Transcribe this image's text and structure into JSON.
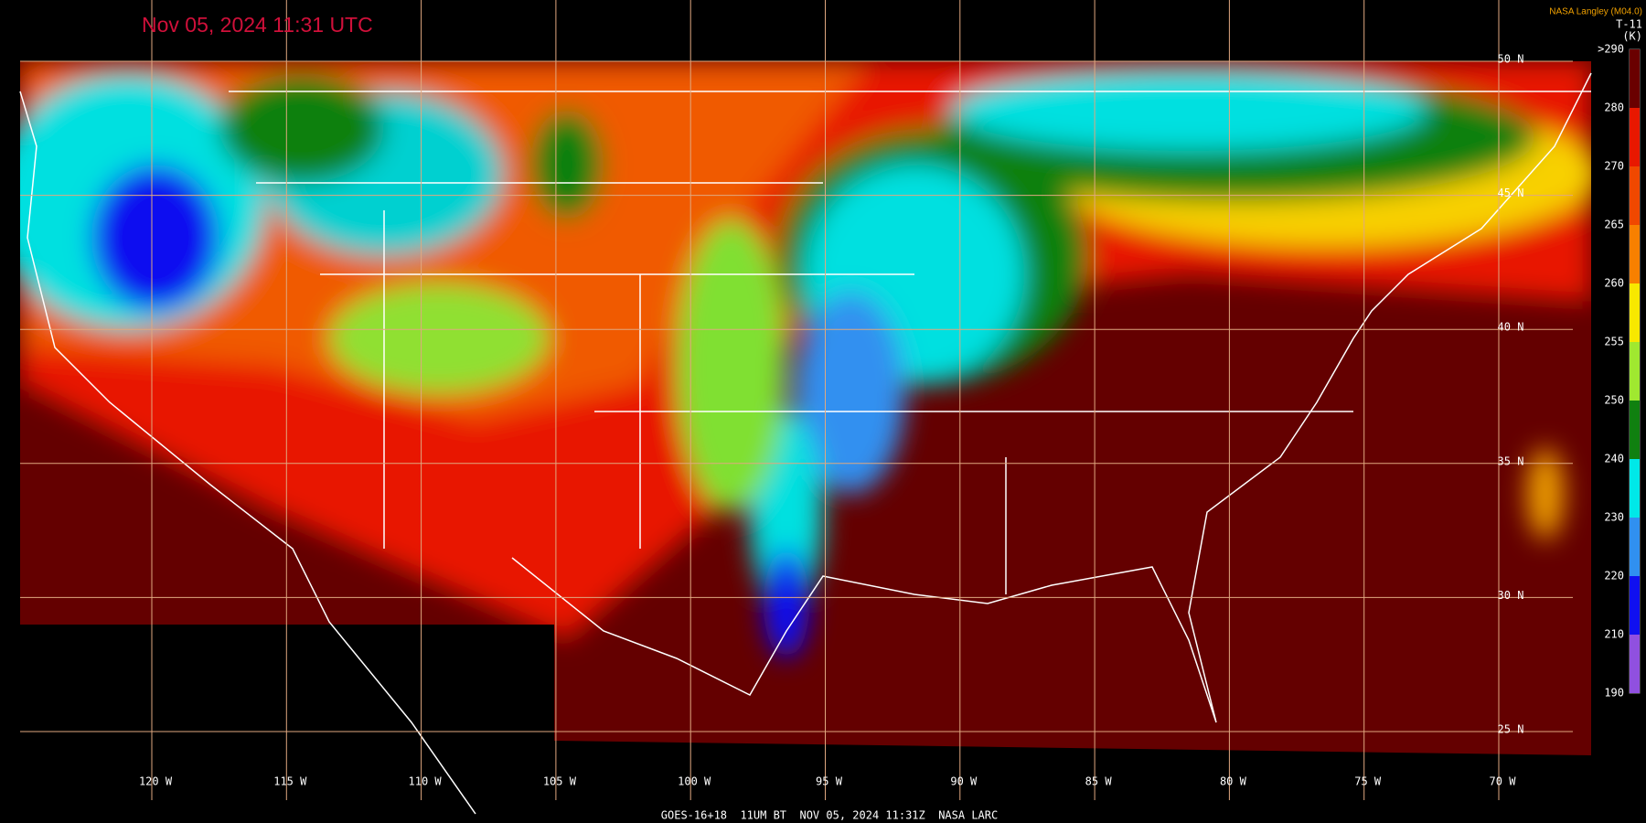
{
  "header": {
    "title": "Nov 05, 2024 11:31 UTC",
    "credit": "NASA Langley (M04.0)"
  },
  "colorbar": {
    "title": "T-11",
    "unit": "(K)",
    "labels": [
      ">290",
      "280",
      "270",
      "265",
      "260",
      "255",
      "250",
      "240",
      "230",
      "220",
      "210",
      "190"
    ],
    "colors": [
      "#6a0000",
      "#e81800",
      "#f04800",
      "#f88000",
      "#f8e800",
      "#a0e830",
      "#108010",
      "#00e8e8",
      "#3090f0",
      "#1010f0",
      "#9050e0"
    ]
  },
  "grid": {
    "longitudes": [
      "120 W",
      "115 W",
      "110 W",
      "105 W",
      "100 W",
      "95 W",
      "90 W",
      "85 W",
      "80 W",
      "75 W",
      "70 W"
    ],
    "latitudes": [
      "50 N",
      "45 N",
      "40 N",
      "35 N",
      "30 N",
      "25 N"
    ]
  },
  "footer": "GOES-16+18  11UM BT  NOV 05, 2024 11:31Z  NASA LARC"
}
